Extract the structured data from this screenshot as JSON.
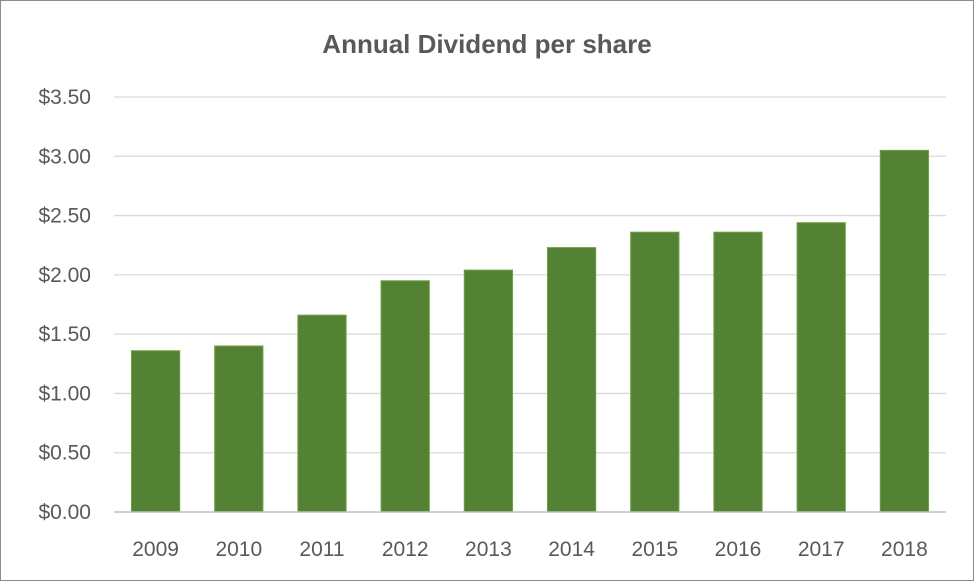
{
  "chart_data": {
    "type": "bar",
    "title": "Annual Dividend per share",
    "categories": [
      "2009",
      "2010",
      "2011",
      "2012",
      "2013",
      "2014",
      "2015",
      "2016",
      "2017",
      "2018"
    ],
    "values": [
      1.36,
      1.4,
      1.66,
      1.95,
      2.04,
      2.23,
      2.36,
      2.36,
      2.44,
      3.05
    ],
    "ylim": [
      0,
      3.5
    ],
    "yticks": [
      0,
      0.5,
      1.0,
      1.5,
      2.0,
      2.5,
      3.0,
      3.5
    ],
    "ytick_labels": [
      "$0.00",
      "$0.50",
      "$1.00",
      "$1.50",
      "$2.00",
      "$2.50",
      "$3.00",
      "$3.50"
    ],
    "xlabel": "",
    "ylabel": "",
    "grid": true,
    "legend": "none",
    "bar_color": "#548235"
  }
}
